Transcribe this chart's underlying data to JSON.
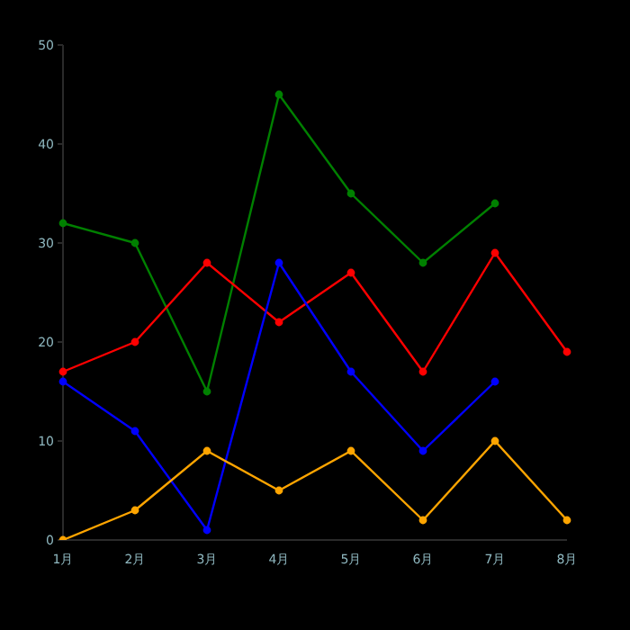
{
  "chart_data": {
    "type": "line",
    "categories": [
      "1月",
      "2月",
      "3月",
      "4月",
      "5月",
      "6月",
      "7月",
      "8月"
    ],
    "series": [
      {
        "color": "#008000",
        "values": [
          32,
          30,
          15,
          45,
          35,
          28,
          34,
          null
        ]
      },
      {
        "color": "#ff0000",
        "values": [
          17,
          20,
          28,
          22,
          27,
          17,
          29,
          19
        ]
      },
      {
        "color": "#0000ff",
        "values": [
          16,
          11,
          1,
          28,
          17,
          9,
          16,
          null
        ]
      },
      {
        "color": "#ffa500",
        "values": [
          0,
          3,
          9,
          5,
          9,
          2,
          10,
          2
        ]
      }
    ],
    "ylim": [
      0,
      50
    ],
    "yticks": [
      0,
      10,
      20,
      30,
      40,
      50
    ],
    "grid": false,
    "legend": false,
    "marker": "circle",
    "line_style": "solid"
  }
}
